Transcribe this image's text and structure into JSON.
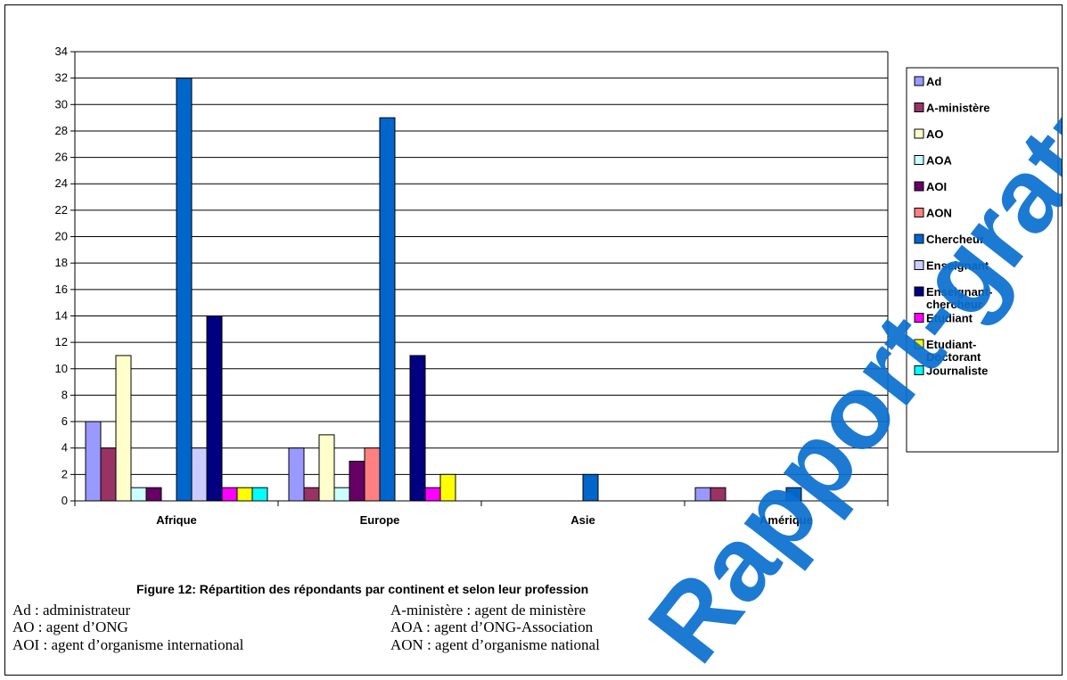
{
  "chart_data": {
    "type": "bar",
    "categories": [
      "Afrique",
      "Europe",
      "Asie",
      "Amérique"
    ],
    "ylim": [
      0,
      34
    ],
    "ytick_step": 2,
    "grid": true,
    "legend_position": "right",
    "series": [
      {
        "name": "Ad",
        "color": "#9999ff",
        "values": [
          6,
          4,
          0,
          1
        ]
      },
      {
        "name": "A-ministère",
        "color": "#993366",
        "values": [
          4,
          1,
          0,
          1
        ]
      },
      {
        "name": "AO",
        "color": "#ffffcc",
        "values": [
          11,
          5,
          0,
          0
        ]
      },
      {
        "name": "AOA",
        "color": "#ccffff",
        "values": [
          1,
          1,
          0,
          0
        ]
      },
      {
        "name": "AOI",
        "color": "#660066",
        "values": [
          1,
          3,
          0,
          0
        ]
      },
      {
        "name": "AON",
        "color": "#ff8080",
        "values": [
          0,
          4,
          0,
          0
        ]
      },
      {
        "name": "Chercheur",
        "color": "#0066cc",
        "values": [
          32,
          29,
          2,
          1
        ]
      },
      {
        "name": "Enseignant",
        "color": "#ccccff",
        "values": [
          4,
          0,
          0,
          0
        ]
      },
      {
        "name": "Enseignant-chercheur",
        "color": "#000080",
        "values": [
          14,
          11,
          0,
          0
        ]
      },
      {
        "name": "Etudiant",
        "color": "#ff00ff",
        "values": [
          1,
          1,
          0,
          0
        ]
      },
      {
        "name": "Etudiant-Doctorant",
        "color": "#ffff00",
        "values": [
          1,
          2,
          0,
          0
        ]
      },
      {
        "name": "Journaliste",
        "color": "#00ffff",
        "values": [
          1,
          0,
          0,
          0
        ]
      }
    ]
  },
  "caption": "Figure 12: Répartition des répondants par continent et selon leur profession",
  "abbreviations": [
    {
      "text": "Ad : administrateur"
    },
    {
      "text": "A-ministère : agent de ministère"
    },
    {
      "text": "AO : agent d’ONG"
    },
    {
      "text": "AOA : agent d’ONG-Association"
    },
    {
      "text": "AOI : agent d’organisme international"
    },
    {
      "text": "AON : agent d’organisme national"
    }
  ],
  "watermark": {
    "text": "Rapport-gratuit.com",
    "color": "#0a6fcf"
  }
}
